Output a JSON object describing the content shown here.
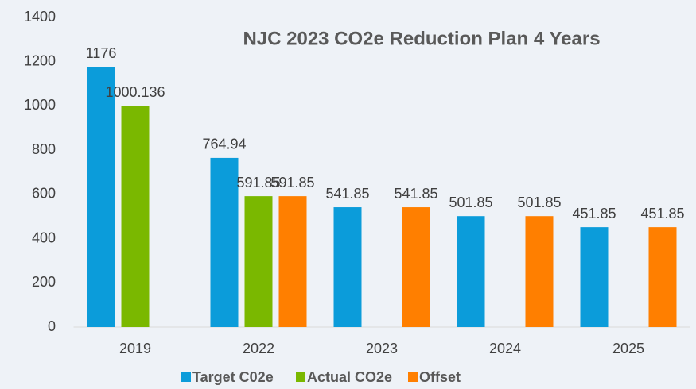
{
  "chart_data": {
    "type": "bar",
    "title": "NJC 2023 CO2e Reduction Plan 4 Years",
    "categories": [
      "2019",
      "2022",
      "2023",
      "2024",
      "2025"
    ],
    "series": [
      {
        "name": "Target C02e",
        "color": "#0b9cda",
        "values": [
          1176,
          764.94,
          541.85,
          501.85,
          451.85
        ]
      },
      {
        "name": "Actual CO2e",
        "color": "#7ab800",
        "values": [
          1000.136,
          591.85,
          null,
          null,
          null
        ]
      },
      {
        "name": "Offset",
        "color": "#ff7f00",
        "values": [
          null,
          591.85,
          541.85,
          501.85,
          451.85
        ]
      }
    ],
    "ylim": [
      0,
      1400
    ],
    "yticks": [
      0,
      200,
      400,
      600,
      800,
      1000,
      1200,
      1400
    ],
    "grid": false,
    "legend": "bottom"
  }
}
